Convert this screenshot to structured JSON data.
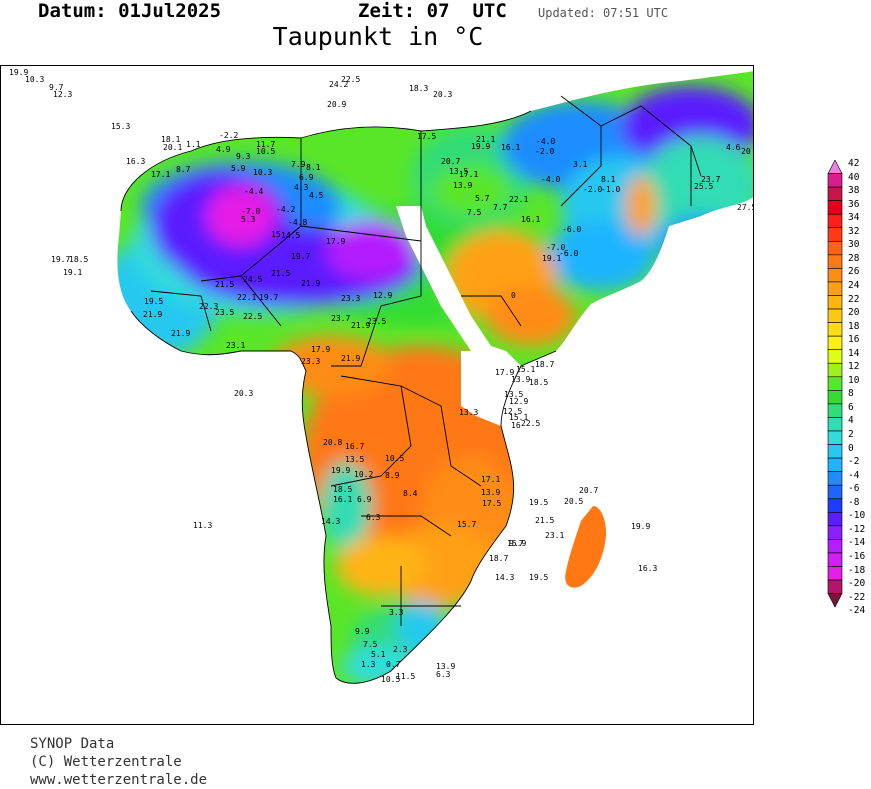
{
  "header": {
    "datum_label": "Datum:",
    "datum_value": "01Jul2025",
    "zeit_label": "Zeit:",
    "zeit_value": "07",
    "zeit_unit": "UTC",
    "updated": "Updated: 07:51 UTC"
  },
  "title": "Taupunkt in °C",
  "legend": {
    "labels": [
      "42",
      "40",
      "38",
      "36",
      "34",
      "32",
      "30",
      "28",
      "26",
      "24",
      "22",
      "20",
      "18",
      "16",
      "14",
      "12",
      "10",
      "8",
      "6",
      "4",
      "2",
      "0",
      "-2",
      "-4",
      "-6",
      "-8",
      "-10",
      "-12",
      "-14",
      "-16",
      "-18",
      "-20",
      "-22",
      "-24"
    ],
    "colors": [
      "#f07ce6",
      "#d91e8c",
      "#c8144a",
      "#e6001e",
      "#ff1e1e",
      "#ff3c14",
      "#ff6414",
      "#ff7814",
      "#ff8c14",
      "#ffa014",
      "#ffb414",
      "#ffc814",
      "#ffdc14",
      "#fff014",
      "#dcff14",
      "#a0f01e",
      "#5ae628",
      "#32dc32",
      "#32dc78",
      "#32dcb4",
      "#32dcdc",
      "#28c8f0",
      "#1eb4ff",
      "#1e8cff",
      "#1e64ff",
      "#1e3cff",
      "#5a1eff",
      "#8c1eff",
      "#b41eff",
      "#d21ef0",
      "#e61ee6",
      "#b4146e",
      "#78143c"
    ]
  },
  "stations": [
    {
      "t": "19.9"
    },
    {
      "t": "10.3"
    },
    {
      "t": "9.7"
    },
    {
      "t": "12.3"
    },
    {
      "t": "15.3"
    },
    {
      "t": "16.3"
    },
    {
      "t": "17.1"
    },
    {
      "t": "8.7"
    },
    {
      "t": "19.7"
    },
    {
      "t": "18.5"
    },
    {
      "t": "19.1"
    },
    {
      "t": "18.1"
    },
    {
      "t": "20.1"
    },
    {
      "t": "1.1"
    },
    {
      "t": "-2.2"
    },
    {
      "t": "4.9"
    },
    {
      "t": "9.3"
    },
    {
      "t": "5.9"
    },
    {
      "t": "11.7"
    },
    {
      "t": "10.5"
    },
    {
      "t": "7.9"
    },
    {
      "t": "8.1"
    },
    {
      "t": "10.3"
    },
    {
      "t": "6.9"
    },
    {
      "t": "4.3"
    },
    {
      "t": "4.5"
    },
    {
      "t": "-4.4"
    },
    {
      "t": "-7.0"
    },
    {
      "t": "-4.2"
    },
    {
      "t": "5.3"
    },
    {
      "t": "-4.8"
    },
    {
      "t": "15"
    },
    {
      "t": "14.5"
    },
    {
      "t": "17.9"
    },
    {
      "t": "19.7"
    },
    {
      "t": "24.5"
    },
    {
      "t": "21.5"
    },
    {
      "t": "21.5"
    },
    {
      "t": "22.1"
    },
    {
      "t": "19.7"
    },
    {
      "t": "21.9"
    },
    {
      "t": "23.3"
    },
    {
      "t": "12.9"
    },
    {
      "t": "19.5"
    },
    {
      "t": "21.9"
    },
    {
      "t": "22.3"
    },
    {
      "t": "23.5"
    },
    {
      "t": "22.5"
    },
    {
      "t": "21.9"
    },
    {
      "t": "23.1"
    },
    {
      "t": "23.7"
    },
    {
      "t": "21.9"
    },
    {
      "t": "23.5"
    },
    {
      "t": "17.9"
    },
    {
      "t": "23.3"
    },
    {
      "t": "21.9"
    },
    {
      "t": "20.3"
    },
    {
      "t": "22.5"
    },
    {
      "t": "24.2"
    },
    {
      "t": "20.9"
    },
    {
      "t": "18.3"
    },
    {
      "t": "20.3"
    },
    {
      "t": "17.5"
    },
    {
      "t": "21.1"
    },
    {
      "t": "19.9"
    },
    {
      "t": "16.1"
    },
    {
      "t": "20.7"
    },
    {
      "t": "13.5"
    },
    {
      "t": "17.1"
    },
    {
      "t": "13.9"
    },
    {
      "t": "5.7"
    },
    {
      "t": "7.5"
    },
    {
      "t": "7.7"
    },
    {
      "t": "22.1"
    },
    {
      "t": "-4.0"
    },
    {
      "t": "-2.0"
    },
    {
      "t": "3.1"
    },
    {
      "t": "-4.0"
    },
    {
      "t": "-2.0"
    },
    {
      "t": "-1.0"
    },
    {
      "t": "8.1"
    },
    {
      "t": "-6.0"
    },
    {
      "t": "-7.0"
    },
    {
      "t": "-6.0"
    },
    {
      "t": "19.1"
    },
    {
      "t": "0"
    },
    {
      "t": "16.1"
    },
    {
      "t": "23.7"
    },
    {
      "t": "25.5"
    },
    {
      "t": "27.5"
    },
    {
      "t": "4.6"
    },
    {
      "t": "20"
    },
    {
      "t": "18.7"
    },
    {
      "t": "17.9"
    },
    {
      "t": "15.1"
    },
    {
      "t": "13.9"
    },
    {
      "t": "18.5"
    },
    {
      "t": "13.5"
    },
    {
      "t": "12.9"
    },
    {
      "t": "12.5"
    },
    {
      "t": "15.1"
    },
    {
      "t": "16"
    },
    {
      "t": "22.5"
    },
    {
      "t": "13.3"
    },
    {
      "t": "20.8"
    },
    {
      "t": "16.7"
    },
    {
      "t": "13.5"
    },
    {
      "t": "10.5"
    },
    {
      "t": "19.9"
    },
    {
      "t": "10.2"
    },
    {
      "t": "8.9"
    },
    {
      "t": "18.5"
    },
    {
      "t": "16.1"
    },
    {
      "t": "6.9"
    },
    {
      "t": "8.4"
    },
    {
      "t": "14.3"
    },
    {
      "t": "6.3"
    },
    {
      "t": "11.3"
    },
    {
      "t": "17.1"
    },
    {
      "t": "13.9"
    },
    {
      "t": "17.5"
    },
    {
      "t": "19.5"
    },
    {
      "t": "21.5"
    },
    {
      "t": "15.7"
    },
    {
      "t": "20.7"
    },
    {
      "t": "20.5"
    },
    {
      "t": "23.1"
    },
    {
      "t": "19.9"
    },
    {
      "t": "16.3"
    },
    {
      "t": "15.9"
    },
    {
      "t": "9.7"
    },
    {
      "t": "18.7"
    },
    {
      "t": "14.3"
    },
    {
      "t": "19.5"
    },
    {
      "t": "3.3"
    },
    {
      "t": "9.9"
    },
    {
      "t": "7.5"
    },
    {
      "t": "5.1"
    },
    {
      "t": "2.3"
    },
    {
      "t": "0.7"
    },
    {
      "t": "1.3"
    },
    {
      "t": "10.5"
    },
    {
      "t": "11.5"
    },
    {
      "t": "13.9"
    },
    {
      "t": "6.3"
    }
  ],
  "footer": {
    "line1": "SYNOP Data",
    "line2": "(C) Wetterzentrale",
    "line3": "www.wetterzentrale.de"
  }
}
